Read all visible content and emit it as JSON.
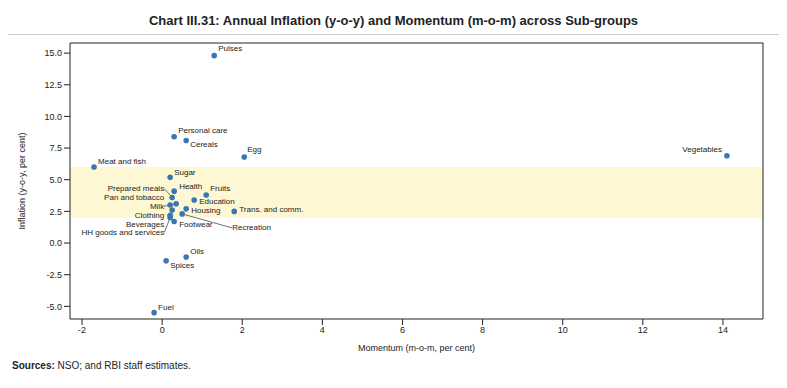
{
  "chart_data": {
    "type": "scatter",
    "title": "Chart III.31: Annual Inflation (y-o-y) and Momentum (m-o-m) across Sub-groups",
    "x_label": "Momentum (m-o-m, per cent)",
    "y_label": "Inflation (y-o-y, per cent)",
    "note": "Sources: NSO; and RBI staff estimates.",
    "color": "#3a76af",
    "marker": "circle",
    "grid": false,
    "points": [
      {
        "label": "Pulses",
        "x": 1.3,
        "y": 14.8
      },
      {
        "label": "Personal care",
        "x": 0.3,
        "y": 8.4
      },
      {
        "label": "Cereals",
        "x": 0.6,
        "y": 8.1
      },
      {
        "label": "Egg",
        "x": 2.05,
        "y": 6.8
      },
      {
        "label": "Vegetables",
        "x": 14.1,
        "y": 6.9
      },
      {
        "label": "Meat and fish",
        "x": -1.7,
        "y": 6.0
      },
      {
        "label": "Sugar",
        "x": 0.2,
        "y": 5.2
      },
      {
        "label": "Health",
        "x": 0.3,
        "y": 4.1
      },
      {
        "label": "Fruits",
        "x": 1.1,
        "y": 3.8
      },
      {
        "label": "Prepared meals",
        "x": 0.25,
        "y": 3.6
      },
      {
        "label": "Education",
        "x": 0.8,
        "y": 3.4
      },
      {
        "label": "Milk",
        "x": 0.35,
        "y": 3.1
      },
      {
        "label": "Pan and tobacco",
        "x": 0.2,
        "y": 3.0
      },
      {
        "label": "Housing",
        "x": 0.6,
        "y": 2.7
      },
      {
        "label": "Clothing",
        "x": 0.25,
        "y": 2.6
      },
      {
        "label": "Trans. and comm.",
        "x": 1.8,
        "y": 2.5
      },
      {
        "label": "Beverages",
        "x": 0.2,
        "y": 2.2
      },
      {
        "label": "Recreation",
        "x": 0.5,
        "y": 2.3
      },
      {
        "label": "HH goods and services",
        "x": 0.2,
        "y": 2.0
      },
      {
        "label": "Footwear",
        "x": 0.3,
        "y": 1.7
      },
      {
        "label": "Oils",
        "x": 0.6,
        "y": -1.1
      },
      {
        "label": "Spices",
        "x": 0.1,
        "y": -1.4
      },
      {
        "label": "Fuel",
        "x": -0.2,
        "y": -5.5
      }
    ],
    "xlim": [
      -2.3,
      15
    ],
    "xticks": [
      -2,
      0,
      2,
      4,
      6,
      8,
      10,
      12,
      14
    ],
    "ylim": [
      -6,
      15.8
    ],
    "yticks": [
      {
        "value": -5,
        "label": "-5.0"
      },
      -2.5,
      {
        "value": 0,
        "label": "0.0"
      },
      2.5,
      {
        "value": 5,
        "label": "5.0"
      },
      7.5,
      {
        "value": 10,
        "label": "10.0"
      },
      12.5,
      {
        "value": 15,
        "label": "15.0"
      }
    ],
    "band": {
      "ylim": [
        2,
        6
      ],
      "color": "#fdf8d3"
    }
  }
}
